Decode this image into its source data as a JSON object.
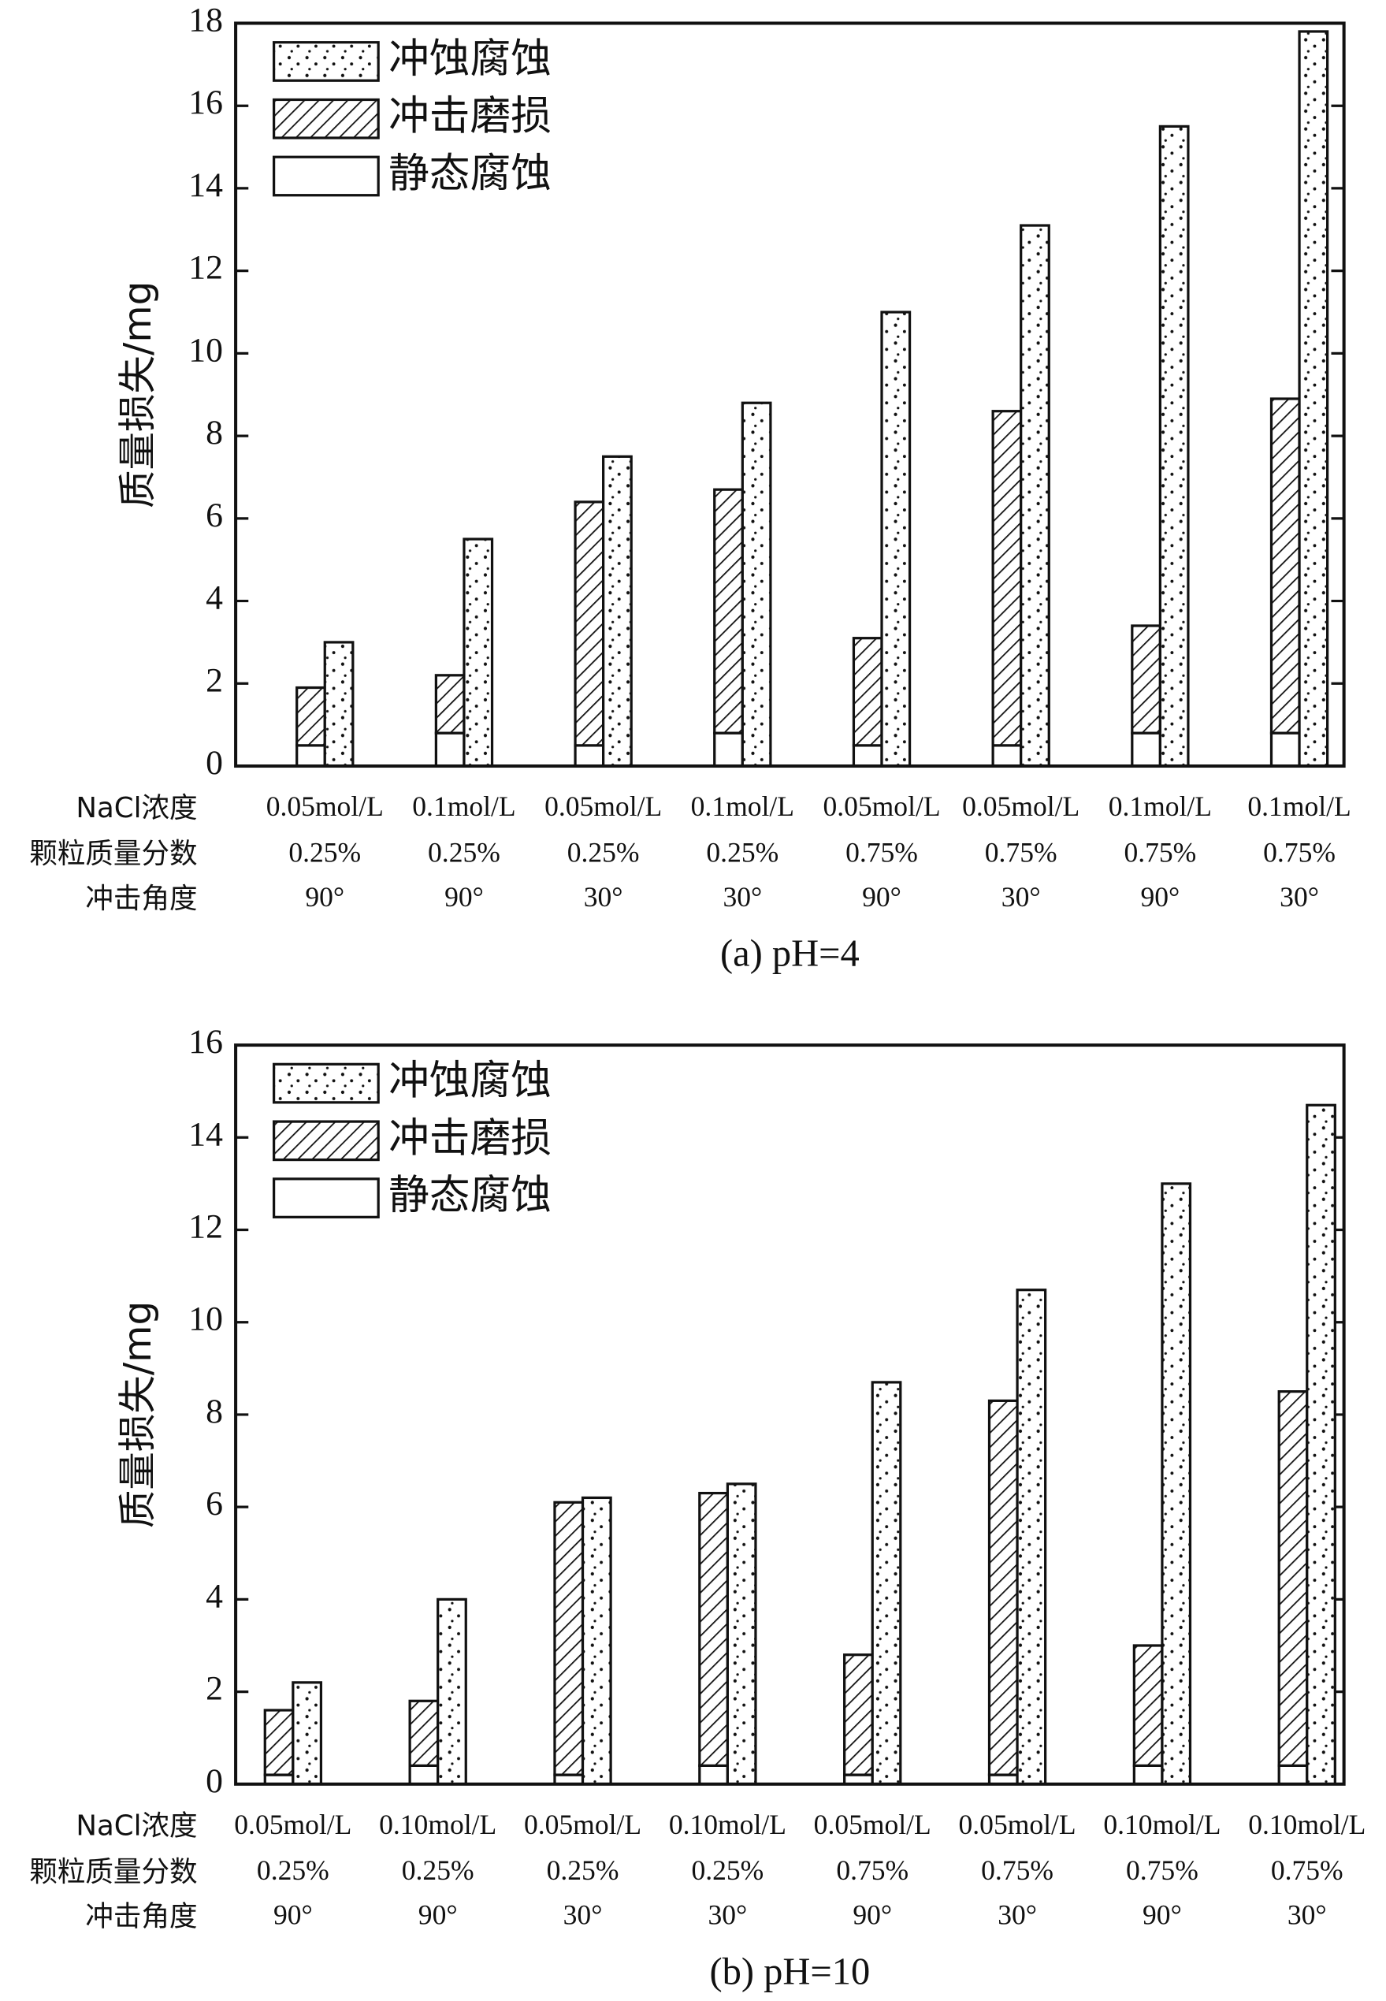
{
  "chart_data": [
    {
      "type": "bar",
      "subtitle": "(a) pH=4",
      "y_label": "质量损失/mg",
      "row_labels": [
        "NaCl浓度",
        "颗粒质量分数",
        "冲击角度"
      ],
      "categories": [
        [
          "0.05mol/L",
          "0.25%",
          "90°"
        ],
        [
          "0.1mol/L",
          "0.25%",
          "90°"
        ],
        [
          "0.05mol/L",
          "0.25%",
          "30°"
        ],
        [
          "0.1mol/L",
          "0.25%",
          "30°"
        ],
        [
          "0.05mol/L",
          "0.75%",
          "90°"
        ],
        [
          "0.05mol/L",
          "0.75%",
          "30°"
        ],
        [
          "0.1mol/L",
          "0.75%",
          "90°"
        ],
        [
          "0.1mol/L",
          "0.75%",
          "30°"
        ]
      ],
      "series": [
        {
          "name": "冲蚀腐蚀",
          "color": "dots",
          "stack": "right",
          "values": [
            3.0,
            5.5,
            7.5,
            8.8,
            11.0,
            13.1,
            15.5,
            17.8
          ]
        },
        {
          "name": "冲击磨损",
          "color": "hatch",
          "stack": "left",
          "values": [
            1.4,
            1.4,
            5.9,
            5.9,
            2.6,
            8.1,
            2.6,
            8.1
          ]
        },
        {
          "name": "静态腐蚀",
          "color": "#ffffff",
          "stack": "left",
          "values": [
            0.5,
            0.8,
            0.5,
            0.8,
            0.5,
            0.5,
            0.8,
            0.8
          ]
        }
      ],
      "ylim": [
        0,
        18
      ],
      "yticks": [
        0,
        2,
        4,
        6,
        8,
        10,
        12,
        14,
        16,
        18
      ],
      "legend": "upper left"
    },
    {
      "type": "bar",
      "subtitle": "(b) pH=10",
      "y_label": "质量损失/mg",
      "row_labels": [
        "NaCl浓度",
        "颗粒质量分数",
        "冲击角度"
      ],
      "categories": [
        [
          "0.05mol/L",
          "0.25%",
          "90°"
        ],
        [
          "0.10mol/L",
          "0.25%",
          "90°"
        ],
        [
          "0.05mol/L",
          "0.25%",
          "30°"
        ],
        [
          "0.10mol/L",
          "0.25%",
          "30°"
        ],
        [
          "0.05mol/L",
          "0.75%",
          "90°"
        ],
        [
          "0.05mol/L",
          "0.75%",
          "30°"
        ],
        [
          "0.10mol/L",
          "0.75%",
          "90°"
        ],
        [
          "0.10mol/L",
          "0.75%",
          "30°"
        ]
      ],
      "series": [
        {
          "name": "冲蚀腐蚀",
          "color": "dots",
          "stack": "right",
          "values": [
            2.2,
            4.0,
            6.2,
            6.5,
            8.7,
            10.7,
            13.0,
            14.7
          ]
        },
        {
          "name": "冲击磨损",
          "color": "hatch",
          "stack": "left",
          "values": [
            1.4,
            1.4,
            5.9,
            5.9,
            2.6,
            8.1,
            2.6,
            8.1
          ]
        },
        {
          "name": "静态腐蚀",
          "color": "#ffffff",
          "stack": "left",
          "values": [
            0.2,
            0.4,
            0.2,
            0.4,
            0.2,
            0.2,
            0.4,
            0.4
          ]
        }
      ],
      "ylim": [
        0,
        16
      ],
      "yticks": [
        0,
        2,
        4,
        6,
        8,
        10,
        12,
        14,
        16
      ],
      "legend": "upper left"
    }
  ]
}
